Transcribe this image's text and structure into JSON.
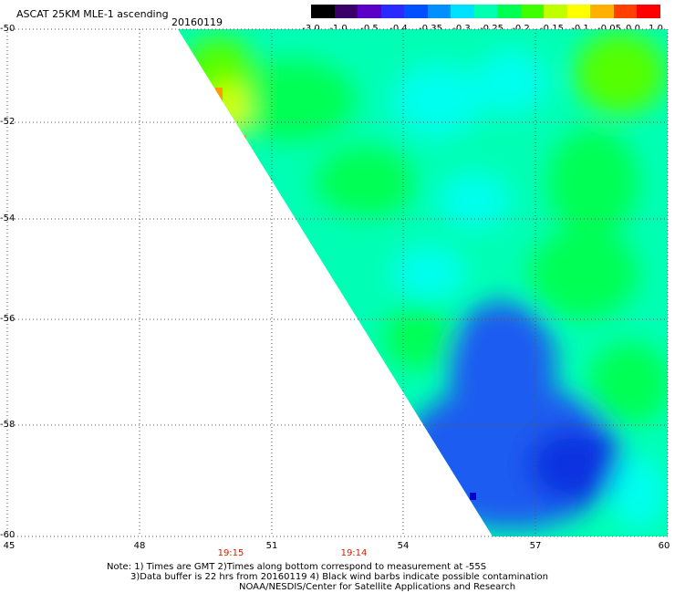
{
  "header": {
    "title": "ASCAT 25KM MLE-1 ascending",
    "date": "20160119"
  },
  "colorbar": {
    "labels": [
      "-3.0",
      "-1.0",
      "-0.5",
      "-0.4",
      "-0.35",
      "-0.3",
      "-0.25",
      "-0.2",
      "-0.15",
      "-0.1",
      "-0.05",
      "0.0",
      "1.0"
    ],
    "colors": [
      "#000000",
      "#3a006a",
      "#5a00c8",
      "#2a2aff",
      "#0050ff",
      "#0090ff",
      "#00e0ff",
      "#00ffb0",
      "#00ff50",
      "#40ff00",
      "#c0ff00",
      "#ffff00",
      "#ffb000",
      "#ff4000",
      "#ff0000"
    ]
  },
  "axes": {
    "y_labels": [
      "-50",
      "-52",
      "-54",
      "-56",
      "-58",
      "-60"
    ],
    "x_labels": [
      "45",
      "48",
      "51",
      "54",
      "57",
      "60"
    ]
  },
  "times": [
    "19:15",
    "19:14"
  ],
  "notes": {
    "line1": "Note: 1) Times are GMT 2)Times along bottom correspond to measurement at -55S",
    "line2": "3)Data buffer is 22 hrs from 20160119 4) Black wind barbs indicate possible contamination",
    "line3": "NOAA/NESDIS/Center for Satellite Applications and Research"
  },
  "palette": {
    "blue": "#1a5cf0",
    "cyan": "#00ffee",
    "green": "#00ff55",
    "lime": "#55ff00",
    "yellow": "#ddff00",
    "orange": "#ff9900",
    "red": "#ff3300"
  }
}
